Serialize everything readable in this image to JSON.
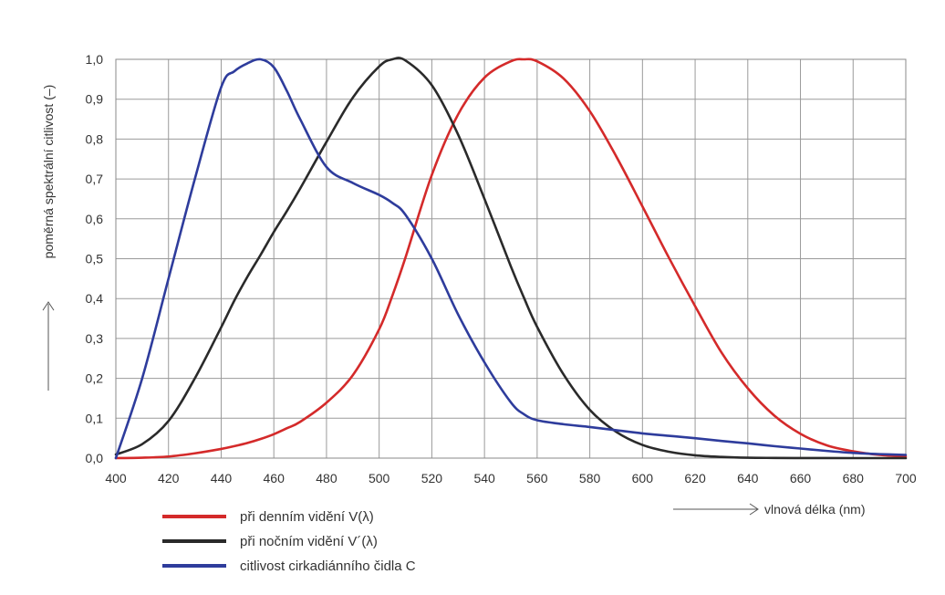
{
  "chart_data": {
    "type": "line",
    "xlabel": "vlnová délka (nm)",
    "ylabel": "poměrná spektrální citlivost (–)",
    "xlim": [
      400,
      700
    ],
    "ylim": [
      0,
      1.0
    ],
    "x_ticks": [
      400,
      420,
      440,
      460,
      480,
      500,
      520,
      540,
      560,
      580,
      600,
      620,
      640,
      660,
      680,
      700
    ],
    "y_ticks": [
      "0,0",
      "0,1",
      "0,2",
      "0,3",
      "0,4",
      "0,5",
      "0,6",
      "0,7",
      "0,8",
      "0,9",
      "1,0"
    ],
    "grid": true,
    "legend_position": "bottom-left",
    "x": [
      400,
      410,
      420,
      430,
      440,
      445,
      450,
      455,
      460,
      465,
      470,
      480,
      490,
      500,
      505,
      510,
      520,
      530,
      540,
      550,
      555,
      560,
      570,
      580,
      590,
      600,
      610,
      620,
      630,
      640,
      650,
      660,
      670,
      680,
      690,
      700
    ],
    "series": [
      {
        "name": "při denním vidění V(λ)",
        "color": "#d42a2a",
        "values": [
          0.0,
          0.001,
          0.004,
          0.012,
          0.023,
          0.03,
          0.038,
          0.048,
          0.06,
          0.075,
          0.091,
          0.139,
          0.208,
          0.323,
          0.407,
          0.503,
          0.71,
          0.862,
          0.954,
          0.995,
          1.0,
          0.995,
          0.952,
          0.87,
          0.757,
          0.631,
          0.503,
          0.381,
          0.265,
          0.175,
          0.107,
          0.061,
          0.032,
          0.017,
          0.008,
          0.004
        ]
      },
      {
        "name": "při nočním vidění V´(λ)",
        "color": "#2a2a2a",
        "values": [
          0.009,
          0.035,
          0.093,
          0.2,
          0.328,
          0.395,
          0.455,
          0.51,
          0.567,
          0.62,
          0.676,
          0.793,
          0.904,
          0.982,
          1.0,
          0.997,
          0.935,
          0.811,
          0.65,
          0.481,
          0.402,
          0.329,
          0.21,
          0.121,
          0.066,
          0.033,
          0.016,
          0.007,
          0.003,
          0.001,
          0.0005,
          0.0002,
          0.0001,
          0.0,
          0.0,
          0.0
        ]
      },
      {
        "name": "citlivost cirkadiánního čidla C",
        "color": "#2e3c9c",
        "values": [
          0.0,
          0.2,
          0.45,
          0.7,
          0.93,
          0.97,
          0.99,
          1.0,
          0.98,
          0.92,
          0.85,
          0.73,
          0.69,
          0.66,
          0.64,
          0.61,
          0.5,
          0.36,
          0.24,
          0.14,
          0.11,
          0.095,
          0.085,
          0.078,
          0.07,
          0.062,
          0.056,
          0.05,
          0.043,
          0.037,
          0.03,
          0.024,
          0.018,
          0.013,
          0.01,
          0.008
        ]
      }
    ]
  }
}
